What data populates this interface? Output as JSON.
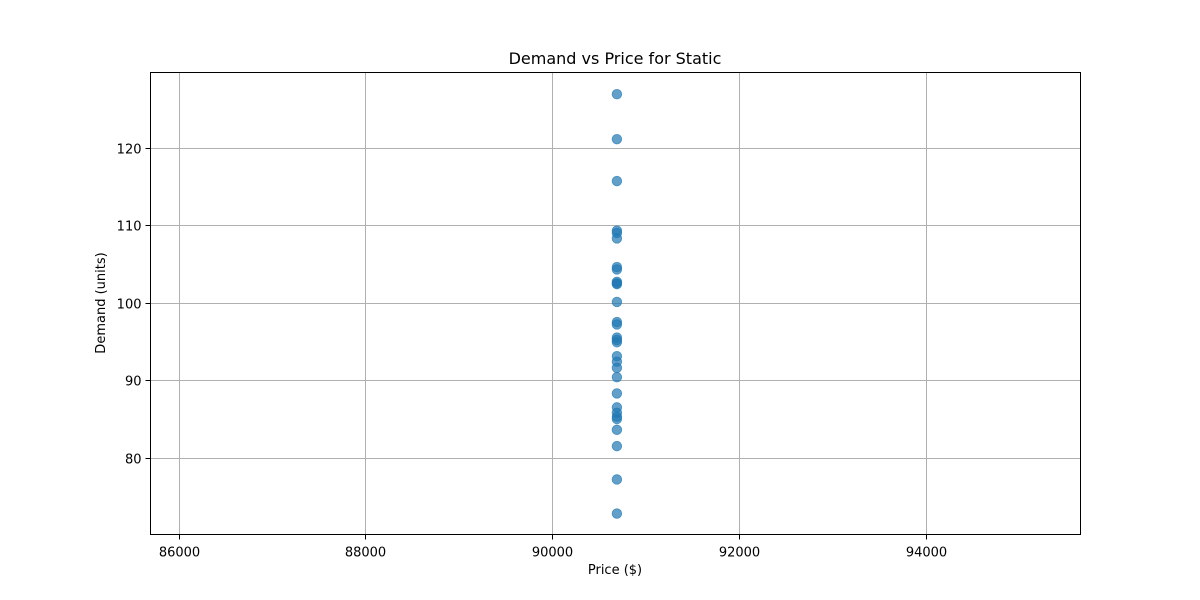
{
  "chart_data": {
    "type": "scatter",
    "title": "Demand vs Price for Static",
    "xlabel": "Price ($)",
    "ylabel": "Demand (units)",
    "xlim": [
      85700,
      95650
    ],
    "ylim": [
      70.1,
      129.7
    ],
    "xticks": [
      86000,
      88000,
      90000,
      92000,
      94000
    ],
    "yticks": [
      80,
      90,
      100,
      110,
      120
    ],
    "grid": true,
    "legend": "none",
    "marker_color": "#1f77b4",
    "marker_alpha": 0.7,
    "series": [
      {
        "x": [
          90690,
          90690,
          90690,
          90690,
          90690,
          90690,
          90690,
          90690,
          90690,
          90690,
          90690,
          90690,
          90690,
          90690,
          90690,
          90690,
          90690,
          90690,
          90690,
          90690,
          90690,
          90690,
          90690,
          90690,
          90690,
          90690,
          90690,
          90690,
          90690,
          90690
        ],
        "y": [
          126.9,
          121.1,
          115.7,
          109.3,
          109.0,
          108.3,
          104.6,
          104.3,
          102.7,
          102.4,
          100.1,
          97.5,
          97.2,
          95.5,
          94.9,
          93.1,
          92.4,
          91.6,
          90.4,
          88.3,
          86.5,
          85.8,
          85.3,
          85.0,
          83.6,
          81.5,
          77.2,
          72.8,
          95.2,
          102.5
        ]
      }
    ]
  }
}
